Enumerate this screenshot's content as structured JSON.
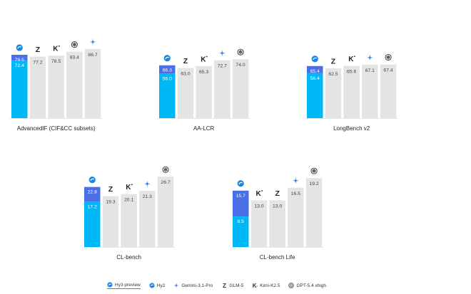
{
  "colors": {
    "hy3": "#00b8f5",
    "hy3_gain": "#4a6ee6",
    "other": "#e4e4e4",
    "label_light": "#ffffff",
    "label_dark": "#444444",
    "gemini": "#4f7fe3",
    "hy_logo": "#1a86e8"
  },
  "chart_data": [
    {
      "type": "bar",
      "title": "AdvancedIF (CIF&CC subsets)",
      "ylim": [
        0,
        100
      ],
      "series": [
        {
          "name": "Hy3 preview",
          "value": 79.5,
          "icon": "hy-icon"
        },
        {
          "name": "Hy2",
          "value": 72.4,
          "stacked_under": "Hy3 preview"
        },
        {
          "name": "GLM-5",
          "value": 77.2,
          "icon": "glm-icon"
        },
        {
          "name": "Kimi-K2.5",
          "value": 78.5,
          "icon": "kimi-icon"
        },
        {
          "name": "GPT-5.4 xhigh",
          "value": 83.4,
          "icon": "gpt-icon"
        },
        {
          "name": "Gemini-3.1-Pro",
          "value": 86.7,
          "icon": "gemini-icon"
        }
      ]
    },
    {
      "type": "bar",
      "title": "AA-LCR",
      "ylim": [
        0,
        100
      ],
      "series": [
        {
          "name": "Hy3 preview",
          "value": 66.3,
          "icon": "hy-icon"
        },
        {
          "name": "Hy2",
          "value": 56.0,
          "stacked_under": "Hy3 preview"
        },
        {
          "name": "GLM-5",
          "value": 63.0,
          "icon": "glm-icon"
        },
        {
          "name": "Kimi-K2.5",
          "value": 65.3,
          "icon": "kimi-icon"
        },
        {
          "name": "Gemini-3.1-Pro",
          "value": 72.7,
          "icon": "gemini-icon"
        },
        {
          "name": "GPT-5.4 xhigh",
          "value": 74.0,
          "icon": "gpt-icon"
        }
      ]
    },
    {
      "type": "bar",
      "title": "LongBench v2",
      "ylim": [
        0,
        100
      ],
      "series": [
        {
          "name": "Hy3 preview",
          "value": 65.4,
          "icon": "hy-icon"
        },
        {
          "name": "Hy2",
          "value": 56.4,
          "stacked_under": "Hy3 preview"
        },
        {
          "name": "GLM-5",
          "value": 62.5,
          "icon": "glm-icon"
        },
        {
          "name": "Kimi-K2.5",
          "value": 65.6,
          "icon": "kimi-icon"
        },
        {
          "name": "Gemini-3.1-Pro",
          "value": 67.1,
          "icon": "gemini-icon"
        },
        {
          "name": "GPT-5.4 xhigh",
          "value": 67.4,
          "icon": "gpt-icon"
        }
      ]
    },
    {
      "type": "bar",
      "title": "CL-bench",
      "ylim": [
        0,
        30
      ],
      "series": [
        {
          "name": "Hy3 preview",
          "value": 22.8,
          "icon": "hy-icon"
        },
        {
          "name": "Hy2",
          "value": 17.2,
          "stacked_under": "Hy3 preview"
        },
        {
          "name": "GLM-5",
          "value": 19.3,
          "icon": "glm-icon"
        },
        {
          "name": "Kimi-K2.5",
          "value": 20.1,
          "icon": "kimi-icon"
        },
        {
          "name": "Gemini-3.1-Pro",
          "value": 21.3,
          "icon": "gemini-icon"
        },
        {
          "name": "GPT-5.4 xhigh",
          "value": 26.7,
          "icon": "gpt-icon"
        }
      ]
    },
    {
      "type": "bar",
      "title": "CL-bench Life",
      "ylim": [
        0,
        22
      ],
      "series": [
        {
          "name": "Hy3 preview",
          "value": 15.7,
          "icon": "hy-icon"
        },
        {
          "name": "Hy2",
          "value": 8.5,
          "stacked_under": "Hy3 preview"
        },
        {
          "name": "Kimi-K2.5",
          "value": 13.0,
          "icon": "kimi-icon"
        },
        {
          "name": "GLM-5",
          "value": 13.0,
          "icon": "glm-icon"
        },
        {
          "name": "Gemini-3.1-Pro",
          "value": 16.5,
          "icon": "gemini-icon"
        },
        {
          "name": "GPT-5.4 xhigh",
          "value": 19.2,
          "icon": "gpt-icon"
        }
      ]
    }
  ],
  "legend": [
    {
      "label": "Hy3 preview",
      "icon": "hy-icon",
      "selected": true
    },
    {
      "label": "Hy2",
      "icon": "hy-icon",
      "selected": false
    },
    {
      "label": "Gemini-3.1-Pro",
      "icon": "gemini-icon",
      "selected": false
    },
    {
      "label": "GLM-5",
      "icon": "glm-icon",
      "selected": false
    },
    {
      "label": "Kimi-K2.5",
      "icon": "kimi-icon",
      "selected": false
    },
    {
      "label": "GPT-5.4 xhigh",
      "icon": "gpt-icon",
      "selected": false
    }
  ]
}
